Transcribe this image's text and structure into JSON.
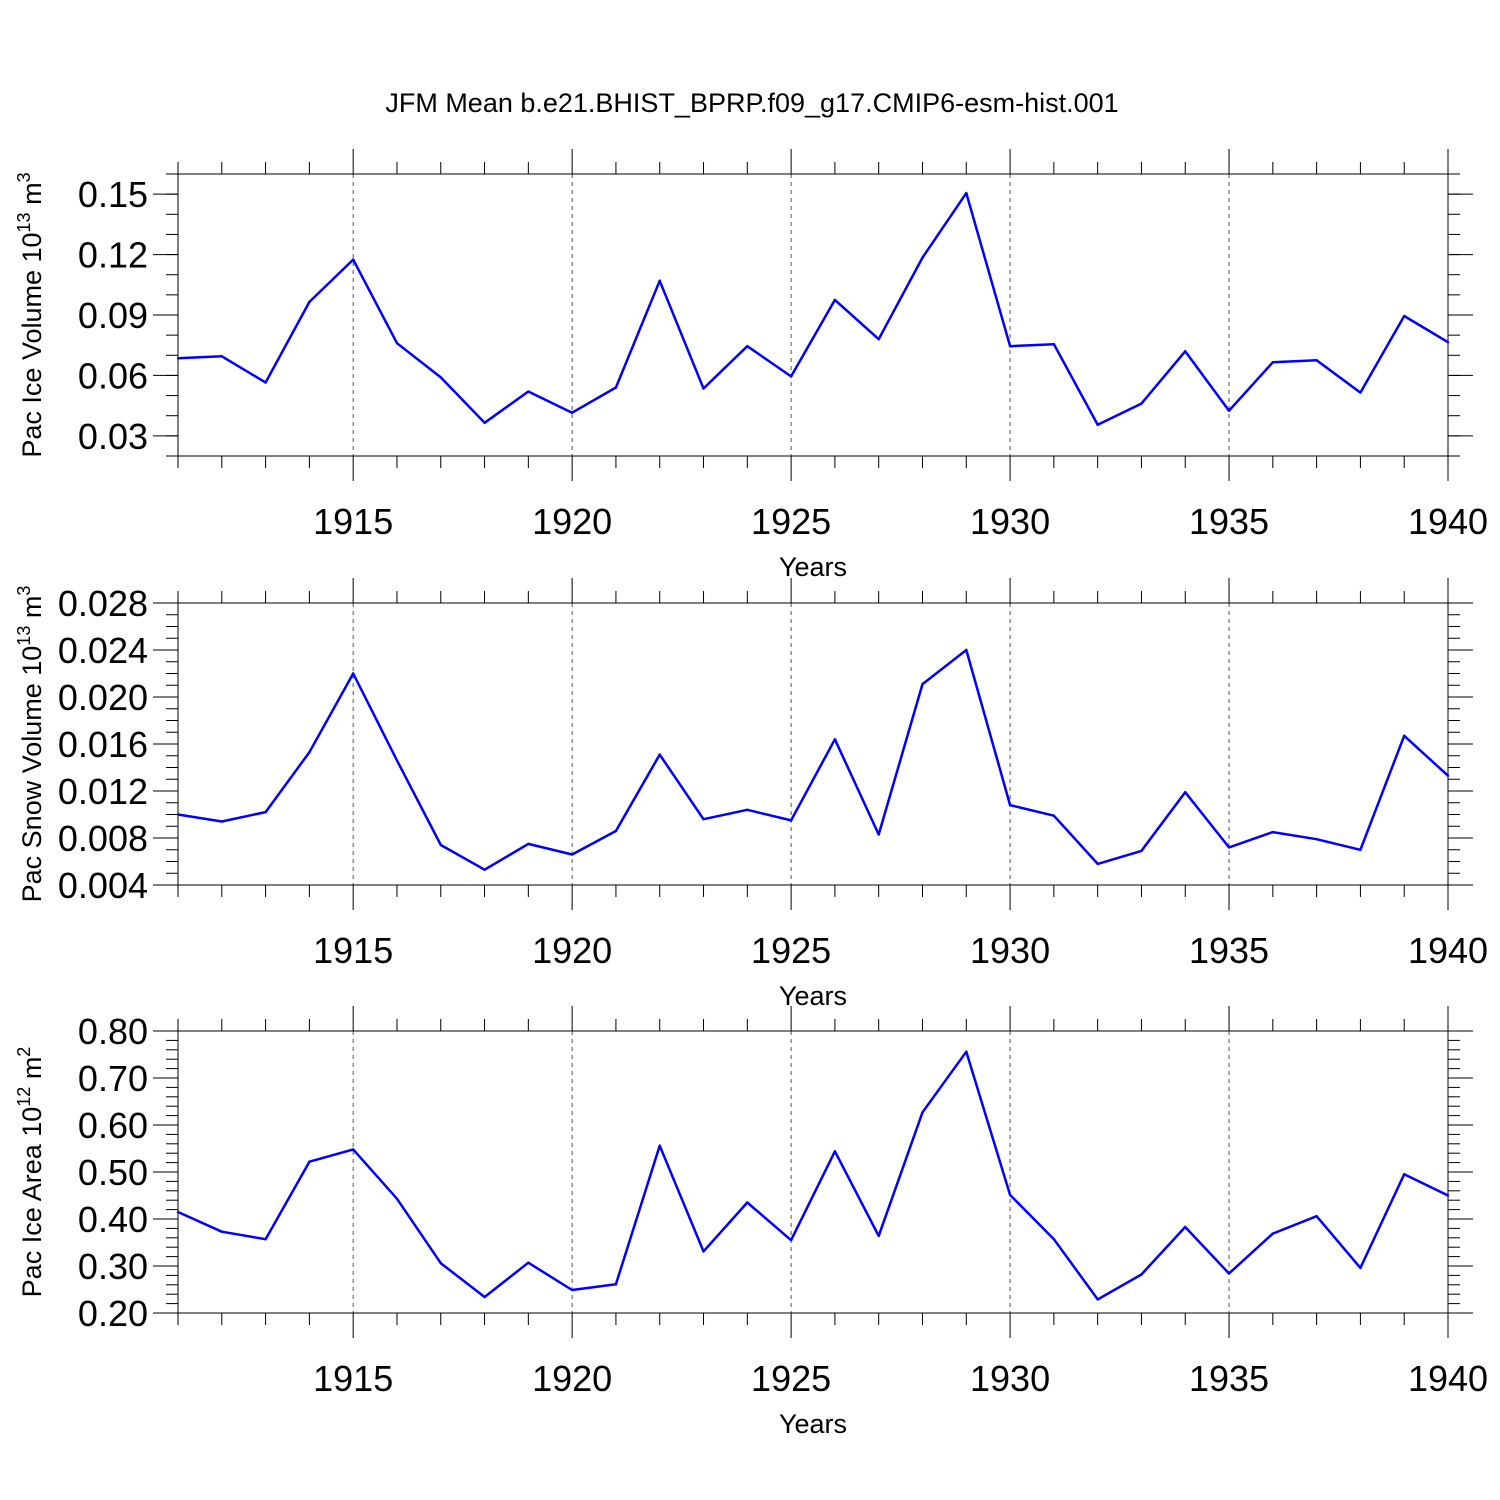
{
  "figure": {
    "title": "JFM Mean b.e21.BHIST_BPRP.f09_g17.CMIP6-esm-hist.001"
  },
  "colors": {
    "line": "#0000ff",
    "axis": "#000000",
    "grid": "#555555"
  },
  "chart_data": [
    {
      "type": "line",
      "xlabel": "Years",
      "ylabel": {
        "main": "Pac Ice Volume 10",
        "exp": "13",
        "unit": " m",
        "unit_exp": "3"
      },
      "xlim": [
        1911,
        1940
      ],
      "ylim": [
        0.02,
        0.16
      ],
      "xticks": [
        1915,
        1920,
        1925,
        1930,
        1935,
        1940
      ],
      "yticks": [
        "0.03",
        "0.06",
        "0.09",
        "0.12",
        "0.15"
      ],
      "yminor_step": 0.01,
      "grid": "vertical-dashed-at-major-x",
      "x": [
        1911,
        1912,
        1913,
        1914,
        1915,
        1916,
        1917,
        1918,
        1919,
        1920,
        1921,
        1922,
        1923,
        1924,
        1925,
        1926,
        1927,
        1928,
        1929,
        1930,
        1931,
        1932,
        1933,
        1934,
        1935,
        1936,
        1937,
        1938,
        1939,
        1940
      ],
      "values": [
        0.0685,
        0.0695,
        0.0565,
        0.0965,
        0.1175,
        0.076,
        0.059,
        0.0365,
        0.052,
        0.0415,
        0.054,
        0.107,
        0.0535,
        0.0745,
        0.0595,
        0.0975,
        0.078,
        0.1185,
        0.1505,
        0.0745,
        0.0755,
        0.0355,
        0.046,
        0.072,
        0.0425,
        0.0665,
        0.0675,
        0.0515,
        0.0895,
        0.0765
      ]
    },
    {
      "type": "line",
      "xlabel": "Years",
      "ylabel": {
        "main": "Pac Snow Volume 10",
        "exp": "13",
        "unit": " m",
        "unit_exp": "3"
      },
      "xlim": [
        1911,
        1940
      ],
      "ylim": [
        0.004,
        0.028
      ],
      "xticks": [
        1915,
        1920,
        1925,
        1930,
        1935,
        1940
      ],
      "yticks": [
        "0.004",
        "0.008",
        "0.012",
        "0.016",
        "0.020",
        "0.024",
        "0.028"
      ],
      "yminor_step": 0.001,
      "grid": "vertical-dashed-at-major-x",
      "x": [
        1911,
        1912,
        1913,
        1914,
        1915,
        1916,
        1917,
        1918,
        1919,
        1920,
        1921,
        1922,
        1923,
        1924,
        1925,
        1926,
        1927,
        1928,
        1929,
        1930,
        1931,
        1932,
        1933,
        1934,
        1935,
        1936,
        1937,
        1938,
        1939,
        1940
      ],
      "values": [
        0.01,
        0.0094,
        0.0102,
        0.0153,
        0.022,
        0.0146,
        0.0074,
        0.0053,
        0.0075,
        0.0066,
        0.0086,
        0.0151,
        0.0096,
        0.0104,
        0.0095,
        0.0164,
        0.0083,
        0.0211,
        0.024,
        0.0108,
        0.0099,
        0.0058,
        0.0069,
        0.0119,
        0.0072,
        0.0085,
        0.0079,
        0.007,
        0.0167,
        0.0133
      ]
    },
    {
      "type": "line",
      "xlabel": "Years",
      "ylabel": {
        "main": "Pac Ice Area 10",
        "exp": "12",
        "unit": " m",
        "unit_exp": "2"
      },
      "xlim": [
        1911,
        1940
      ],
      "ylim": [
        0.2,
        0.8
      ],
      "xticks": [
        1915,
        1920,
        1925,
        1930,
        1935,
        1940
      ],
      "yticks": [
        "0.20",
        "0.30",
        "0.40",
        "0.50",
        "0.60",
        "0.70",
        "0.80"
      ],
      "yminor_step": 0.02,
      "grid": "vertical-dashed-at-major-x",
      "x": [
        1911,
        1912,
        1913,
        1914,
        1915,
        1916,
        1917,
        1918,
        1919,
        1920,
        1921,
        1922,
        1923,
        1924,
        1925,
        1926,
        1927,
        1928,
        1929,
        1930,
        1931,
        1932,
        1933,
        1934,
        1935,
        1936,
        1937,
        1938,
        1939,
        1940
      ],
      "values": [
        0.415,
        0.373,
        0.357,
        0.522,
        0.548,
        0.443,
        0.306,
        0.234,
        0.307,
        0.249,
        0.261,
        0.556,
        0.331,
        0.435,
        0.355,
        0.544,
        0.364,
        0.627,
        0.756,
        0.451,
        0.357,
        0.229,
        0.282,
        0.383,
        0.284,
        0.369,
        0.406,
        0.296,
        0.495,
        0.45
      ]
    }
  ]
}
